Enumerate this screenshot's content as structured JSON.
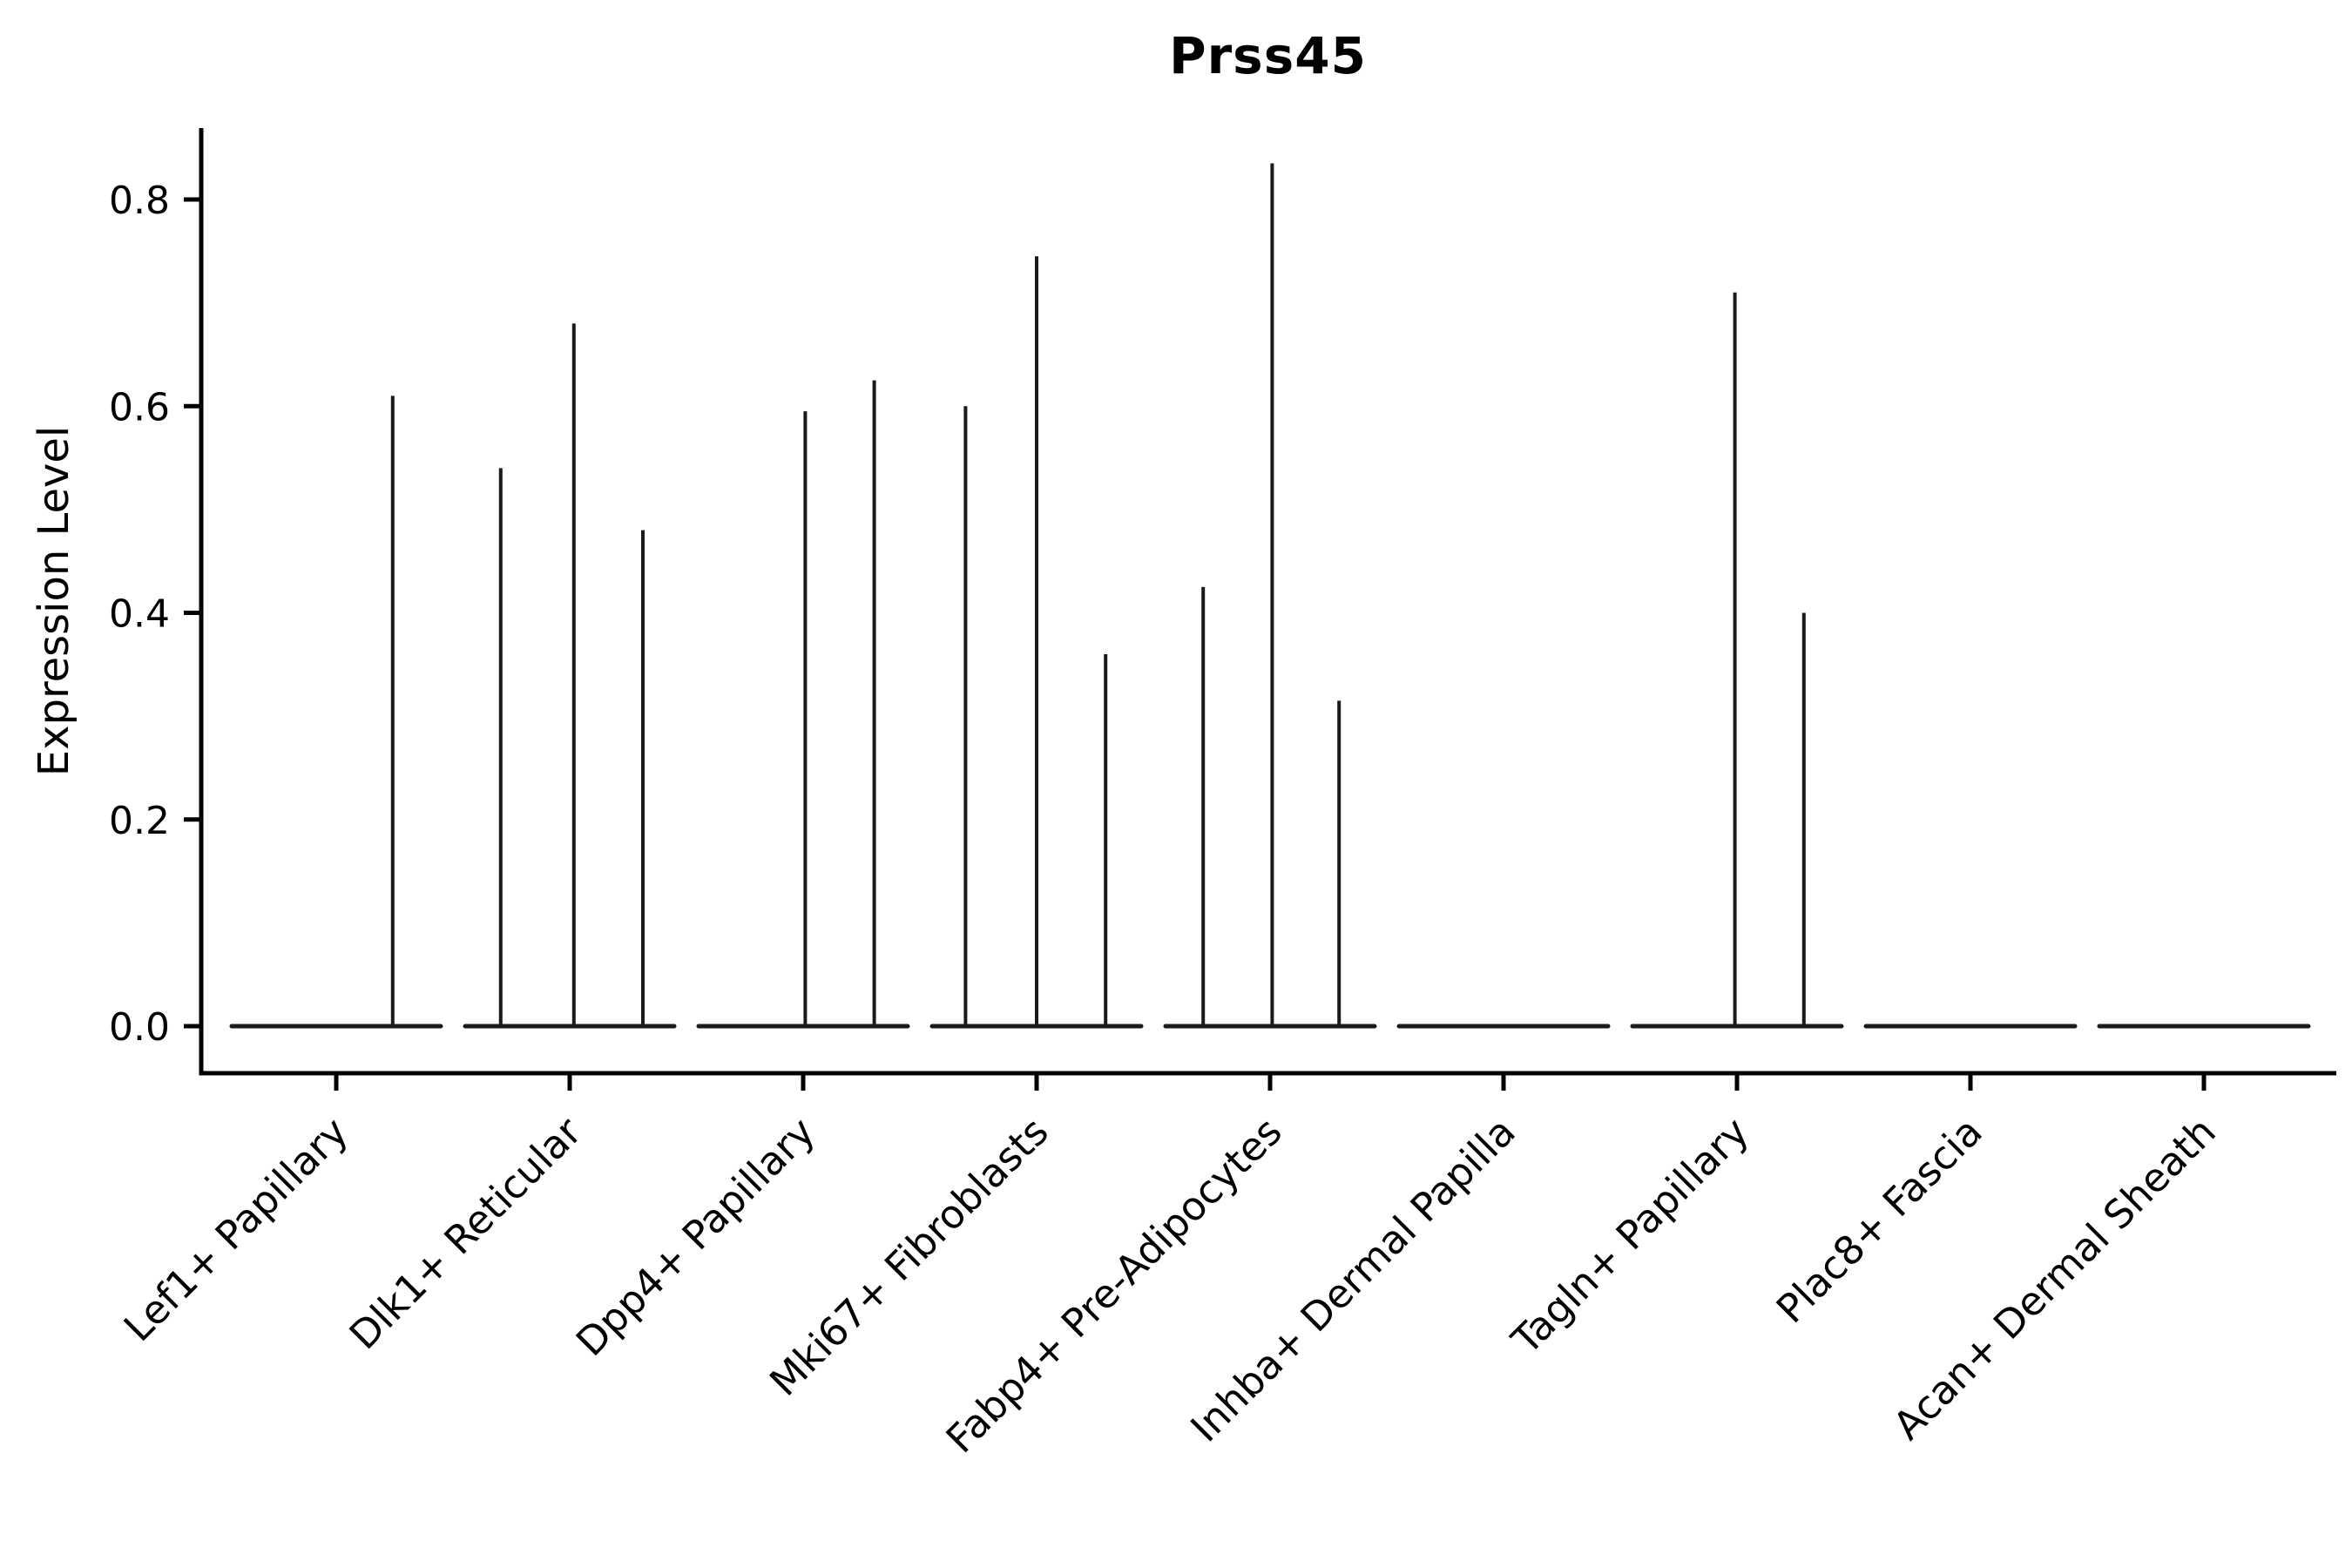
{
  "chart_data": {
    "type": "violin",
    "title": "Prss45",
    "ylabel": "Expression Level",
    "xlabel": "",
    "grid": false,
    "legend": "none",
    "ylim": [
      -0.045,
      0.87
    ],
    "yticks": [
      "0.0",
      "0.2",
      "0.4",
      "0.6",
      "0.8"
    ],
    "ytick_values": [
      0.0,
      0.2,
      0.4,
      0.6,
      0.8
    ],
    "categories": [
      "Lef1+ Papillary",
      "Dlk1+ Reticular",
      "Dpp4+ Papillary",
      "Mki67+ Fibroblasts",
      "Fabp4+ Pre-Adipocytes",
      "Inhba+ Dermal Papilla",
      "Tagln+ Papillary",
      "Plac8+ Fascia",
      "Acan+ Dermal Sheath"
    ],
    "violins": [
      {
        "category": "Lef1+ Papillary",
        "baseline_value": 0.0,
        "spikes": [
          {
            "rel_x": 0.77,
            "value": 0.61
          }
        ]
      },
      {
        "category": "Dlk1+ Reticular",
        "baseline_value": 0.0,
        "spikes": [
          {
            "rel_x": 0.17,
            "value": 0.54
          },
          {
            "rel_x": 0.52,
            "value": 0.68
          },
          {
            "rel_x": 0.85,
            "value": 0.48
          }
        ]
      },
      {
        "category": "Dpp4+ Papillary",
        "baseline_value": 0.0,
        "spikes": [
          {
            "rel_x": 0.51,
            "value": 0.595
          },
          {
            "rel_x": 0.84,
            "value": 0.625
          }
        ]
      },
      {
        "category": "Mki67+ Fibroblasts",
        "baseline_value": 0.0,
        "spikes": [
          {
            "rel_x": 0.16,
            "value": 0.6
          },
          {
            "rel_x": 0.5,
            "value": 0.745
          },
          {
            "rel_x": 0.83,
            "value": 0.36
          }
        ]
      },
      {
        "category": "Fabp4+ Pre-Adipocytes",
        "baseline_value": 0.0,
        "spikes": [
          {
            "rel_x": 0.18,
            "value": 0.425
          },
          {
            "rel_x": 0.51,
            "value": 0.835
          },
          {
            "rel_x": 0.83,
            "value": 0.315
          }
        ]
      },
      {
        "category": "Inhba+ Dermal Papilla",
        "baseline_value": 0.0,
        "spikes": []
      },
      {
        "category": "Tagln+ Papillary",
        "baseline_value": 0.0,
        "spikes": [
          {
            "rel_x": 0.49,
            "value": 0.71
          },
          {
            "rel_x": 0.82,
            "value": 0.4
          }
        ]
      },
      {
        "category": "Plac8+ Fascia",
        "baseline_value": 0.0,
        "spikes": []
      },
      {
        "category": "Acan+ Dermal Sheath",
        "baseline_value": 0.0,
        "spikes": []
      }
    ],
    "colors": {
      "line": "#1a1a1a",
      "axis": "#000000",
      "text": "#000000",
      "background": "#ffffff"
    }
  }
}
